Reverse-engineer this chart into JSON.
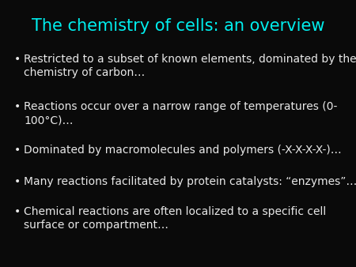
{
  "title": "The chemistry of cells: an overview",
  "title_color": "#00EEEE",
  "background_color": "#0A0A0A",
  "bullet_color": "#E8E8E8",
  "bullet_symbol": "•",
  "bullet_points": [
    "Restricted to a subset of known elements, dominated by the\nchemistry of carbon…",
    "Reactions occur over a narrow range of temperatures (0-\n100°C)…",
    "Dominated by macromolecules and polymers (-X-X-X-X-)…",
    "Many reactions facilitated by protein catalysts: “enzymes”…",
    "Chemical reactions are often localized to a specific cell\nsurface or compartment…"
  ],
  "title_fontsize": 15,
  "bullet_fontsize": 10,
  "figsize": [
    4.5,
    3.38
  ],
  "dpi": 100
}
